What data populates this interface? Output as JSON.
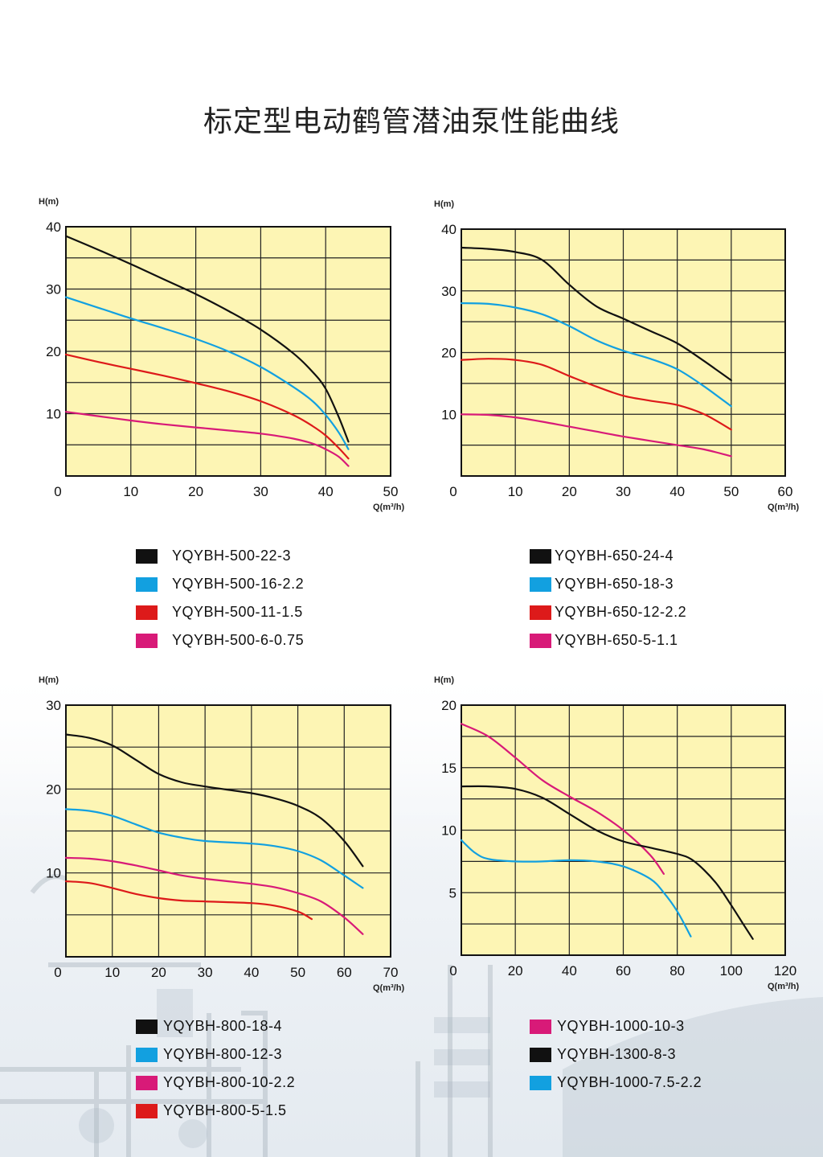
{
  "page_title": "标定型电动鹤管潜油泵性能曲线",
  "colors": {
    "black": "#111111",
    "blue": "#12a0e0",
    "red": "#dd1a1a",
    "magenta": "#d81a78",
    "plot_bg": "#fdf5b4"
  },
  "chart_data": [
    {
      "type": "line",
      "ylabel": "H(m)",
      "xlabel": "Q(m³/h)",
      "xlim": [
        0,
        50
      ],
      "ylim": [
        0,
        40
      ],
      "xticks": [
        0,
        10,
        20,
        30,
        40,
        50
      ],
      "yticks": [
        10,
        20,
        30,
        40
      ],
      "x_divisions": 5,
      "y_divisions": 8,
      "series": [
        {
          "name": "YQYBH-500-22-3",
          "color": "#111111",
          "points": [
            [
              0,
              38.5
            ],
            [
              5,
              36.3
            ],
            [
              10,
              34
            ],
            [
              15,
              31.6
            ],
            [
              20,
              29.2
            ],
            [
              25,
              26.5
            ],
            [
              30,
              23.5
            ],
            [
              35,
              19.7
            ],
            [
              38,
              16.7
            ],
            [
              40,
              14
            ],
            [
              42,
              9.5
            ],
            [
              43.5,
              5.5
            ]
          ]
        },
        {
          "name": "YQYBH-500-16-2.2",
          "color": "#12a0e0",
          "points": [
            [
              0,
              28.7
            ],
            [
              5,
              27
            ],
            [
              10,
              25.3
            ],
            [
              15,
              23.7
            ],
            [
              20,
              22
            ],
            [
              25,
              20
            ],
            [
              30,
              17.5
            ],
            [
              35,
              14.3
            ],
            [
              38,
              12
            ],
            [
              40,
              9.8
            ],
            [
              42,
              7
            ],
            [
              43.5,
              4.3
            ]
          ]
        },
        {
          "name": "YQYBH-500-11-1.5",
          "color": "#dd1a1a",
          "points": [
            [
              0,
              19.5
            ],
            [
              5,
              18.3
            ],
            [
              10,
              17.2
            ],
            [
              15,
              16.1
            ],
            [
              20,
              14.9
            ],
            [
              25,
              13.6
            ],
            [
              30,
              12
            ],
            [
              35,
              9.8
            ],
            [
              38,
              8
            ],
            [
              40,
              6.5
            ],
            [
              42,
              4.5
            ],
            [
              43.5,
              2.8
            ]
          ]
        },
        {
          "name": "YQYBH-500-6-0.75",
          "color": "#d81a78",
          "points": [
            [
              0,
              10.3
            ],
            [
              5,
              9.6
            ],
            [
              10,
              8.9
            ],
            [
              15,
              8.3
            ],
            [
              20,
              7.8
            ],
            [
              25,
              7.3
            ],
            [
              30,
              6.8
            ],
            [
              35,
              6
            ],
            [
              38,
              5.2
            ],
            [
              40,
              4.3
            ],
            [
              42,
              3.1
            ],
            [
              43.5,
              1.6
            ]
          ]
        }
      ]
    },
    {
      "type": "line",
      "ylabel": "H(m)",
      "xlabel": "Q(m³/h)",
      "xlim": [
        0,
        60
      ],
      "ylim": [
        0,
        40
      ],
      "xticks": [
        0,
        10,
        20,
        30,
        40,
        50,
        60
      ],
      "yticks": [
        10,
        20,
        30,
        40
      ],
      "x_divisions": 6,
      "y_divisions": 8,
      "series": [
        {
          "name": "YQYBH-650-24-4",
          "color": "#111111",
          "points": [
            [
              0,
              37
            ],
            [
              5,
              36.8
            ],
            [
              10,
              36.3
            ],
            [
              15,
              35
            ],
            [
              20,
              31
            ],
            [
              25,
              27.5
            ],
            [
              30,
              25.5
            ],
            [
              35,
              23.5
            ],
            [
              40,
              21.5
            ],
            [
              45,
              18.6
            ],
            [
              50,
              15.5
            ]
          ]
        },
        {
          "name": "YQYBH-650-18-3",
          "color": "#12a0e0",
          "points": [
            [
              0,
              28
            ],
            [
              5,
              27.9
            ],
            [
              10,
              27.3
            ],
            [
              15,
              26.2
            ],
            [
              20,
              24.3
            ],
            [
              25,
              22
            ],
            [
              30,
              20.3
            ],
            [
              35,
              19
            ],
            [
              40,
              17.3
            ],
            [
              45,
              14.5
            ],
            [
              50,
              11.3
            ]
          ]
        },
        {
          "name": "YQYBH-650-12-2.2",
          "color": "#dd1a1a",
          "points": [
            [
              0,
              18.8
            ],
            [
              5,
              19
            ],
            [
              10,
              18.8
            ],
            [
              15,
              18
            ],
            [
              20,
              16.2
            ],
            [
              25,
              14.5
            ],
            [
              30,
              13
            ],
            [
              35,
              12.2
            ],
            [
              40,
              11.5
            ],
            [
              45,
              10
            ],
            [
              50,
              7.5
            ]
          ]
        },
        {
          "name": "YQYBH-650-5-1.1",
          "color": "#d81a78",
          "points": [
            [
              0,
              10
            ],
            [
              5,
              9.9
            ],
            [
              10,
              9.5
            ],
            [
              15,
              8.8
            ],
            [
              20,
              8
            ],
            [
              25,
              7.2
            ],
            [
              30,
              6.4
            ],
            [
              35,
              5.7
            ],
            [
              40,
              5
            ],
            [
              45,
              4.3
            ],
            [
              50,
              3.2
            ]
          ]
        }
      ]
    },
    {
      "type": "line",
      "ylabel": "H(m)",
      "xlabel": "Q(m³/h)",
      "xlim": [
        0,
        70
      ],
      "ylim": [
        0,
        30
      ],
      "xticks": [
        0,
        10,
        20,
        30,
        40,
        50,
        60,
        70
      ],
      "yticks": [
        10,
        20,
        30
      ],
      "x_divisions": 7,
      "y_divisions": 6,
      "series": [
        {
          "name": "YQYBH-800-18-4",
          "color": "#111111",
          "points": [
            [
              0,
              26.5
            ],
            [
              5,
              26.1
            ],
            [
              10,
              25.2
            ],
            [
              15,
              23.5
            ],
            [
              20,
              21.8
            ],
            [
              25,
              20.8
            ],
            [
              30,
              20.3
            ],
            [
              40,
              19.5
            ],
            [
              45,
              18.9
            ],
            [
              50,
              18
            ],
            [
              55,
              16.5
            ],
            [
              60,
              13.8
            ],
            [
              64,
              10.8
            ]
          ]
        },
        {
          "name": "YQYBH-800-12-3",
          "color": "#12a0e0",
          "points": [
            [
              0,
              17.6
            ],
            [
              5,
              17.4
            ],
            [
              10,
              16.8
            ],
            [
              15,
              15.8
            ],
            [
              20,
              14.8
            ],
            [
              25,
              14.2
            ],
            [
              30,
              13.8
            ],
            [
              40,
              13.5
            ],
            [
              45,
              13.2
            ],
            [
              50,
              12.6
            ],
            [
              55,
              11.5
            ],
            [
              60,
              9.7
            ],
            [
              64,
              8.2
            ]
          ]
        },
        {
          "name": "YQYBH-800-10-2.2",
          "color": "#d81a78",
          "points": [
            [
              0,
              11.8
            ],
            [
              5,
              11.7
            ],
            [
              10,
              11.4
            ],
            [
              15,
              10.9
            ],
            [
              20,
              10.3
            ],
            [
              25,
              9.7
            ],
            [
              30,
              9.3
            ],
            [
              40,
              8.7
            ],
            [
              45,
              8.3
            ],
            [
              50,
              7.6
            ],
            [
              55,
              6.6
            ],
            [
              60,
              4.7
            ],
            [
              64,
              2.7
            ]
          ]
        },
        {
          "name": "YQYBH-800-5-1.5",
          "color": "#dd1a1a",
          "points": [
            [
              0,
              9
            ],
            [
              5,
              8.8
            ],
            [
              10,
              8.2
            ],
            [
              15,
              7.5
            ],
            [
              20,
              7
            ],
            [
              25,
              6.7
            ],
            [
              30,
              6.6
            ],
            [
              40,
              6.4
            ],
            [
              45,
              6.1
            ],
            [
              50,
              5.4
            ],
            [
              53,
              4.5
            ]
          ]
        }
      ]
    },
    {
      "type": "line",
      "ylabel": "H(m)",
      "xlabel": "Q(m³/h)",
      "xlim": [
        0,
        120
      ],
      "ylim": [
        0,
        20
      ],
      "xticks": [
        0,
        20,
        40,
        60,
        80,
        100,
        120
      ],
      "yticks": [
        5,
        10,
        15,
        20
      ],
      "x_divisions": 6,
      "y_divisions": 8,
      "series": [
        {
          "name": "YQYBH-1000-10-3",
          "color": "#d81a78",
          "points": [
            [
              0,
              18.5
            ],
            [
              10,
              17.5
            ],
            [
              20,
              15.8
            ],
            [
              30,
              14
            ],
            [
              40,
              12.7
            ],
            [
              50,
              11.5
            ],
            [
              60,
              10
            ],
            [
              70,
              8
            ],
            [
              75,
              6.5
            ]
          ]
        },
        {
          "name": "YQYBH-1300-8-3",
          "color": "#111111",
          "points": [
            [
              0,
              13.5
            ],
            [
              10,
              13.5
            ],
            [
              20,
              13.3
            ],
            [
              30,
              12.6
            ],
            [
              40,
              11.3
            ],
            [
              50,
              10
            ],
            [
              60,
              9.1
            ],
            [
              70,
              8.6
            ],
            [
              80,
              8.1
            ],
            [
              85,
              7.7
            ],
            [
              90,
              6.8
            ],
            [
              95,
              5.6
            ],
            [
              100,
              4
            ],
            [
              105,
              2.3
            ],
            [
              108,
              1.3
            ]
          ]
        },
        {
          "name": "YQYBH-1000-7.5-2.2",
          "color": "#12a0e0",
          "points": [
            [
              0,
              9.2
            ],
            [
              5,
              8.2
            ],
            [
              10,
              7.7
            ],
            [
              20,
              7.5
            ],
            [
              30,
              7.5
            ],
            [
              40,
              7.6
            ],
            [
              50,
              7.5
            ],
            [
              60,
              7.1
            ],
            [
              70,
              6.1
            ],
            [
              75,
              5
            ],
            [
              80,
              3.5
            ],
            [
              85,
              1.5
            ]
          ]
        }
      ]
    }
  ],
  "legends": [
    {
      "items": [
        {
          "label": "YQYBH-500-22-3",
          "color": "#111111"
        },
        {
          "label": "YQYBH-500-16-2.2",
          "color": "#12a0e0"
        },
        {
          "label": "YQYBH-500-11-1.5",
          "color": "#dd1a1a"
        },
        {
          "label": "YQYBH-500-6-0.75",
          "color": "#d81a78"
        }
      ]
    },
    {
      "items": [
        {
          "label": "YQYBH-650-24-4",
          "color": "#111111"
        },
        {
          "label": "YQYBH-650-18-3",
          "color": "#12a0e0"
        },
        {
          "label": "YQYBH-650-12-2.2",
          "color": "#dd1a1a"
        },
        {
          "label": "YQYBH-650-5-1.1",
          "color": "#d81a78"
        }
      ]
    },
    {
      "items": [
        {
          "label": "YQYBH-800-18-4",
          "color": "#111111"
        },
        {
          "label": "YQYBH-800-12-3",
          "color": "#12a0e0"
        },
        {
          "label": "YQYBH-800-10-2.2",
          "color": "#d81a78"
        },
        {
          "label": "YQYBH-800-5-1.5",
          "color": "#dd1a1a"
        }
      ]
    },
    {
      "items": [
        {
          "label": "YQYBH-1000-10-3",
          "color": "#d81a78"
        },
        {
          "label": "YQYBH-1300-8-3",
          "color": "#111111"
        },
        {
          "label": "YQYBH-1000-7.5-2.2",
          "color": "#12a0e0"
        }
      ]
    }
  ]
}
